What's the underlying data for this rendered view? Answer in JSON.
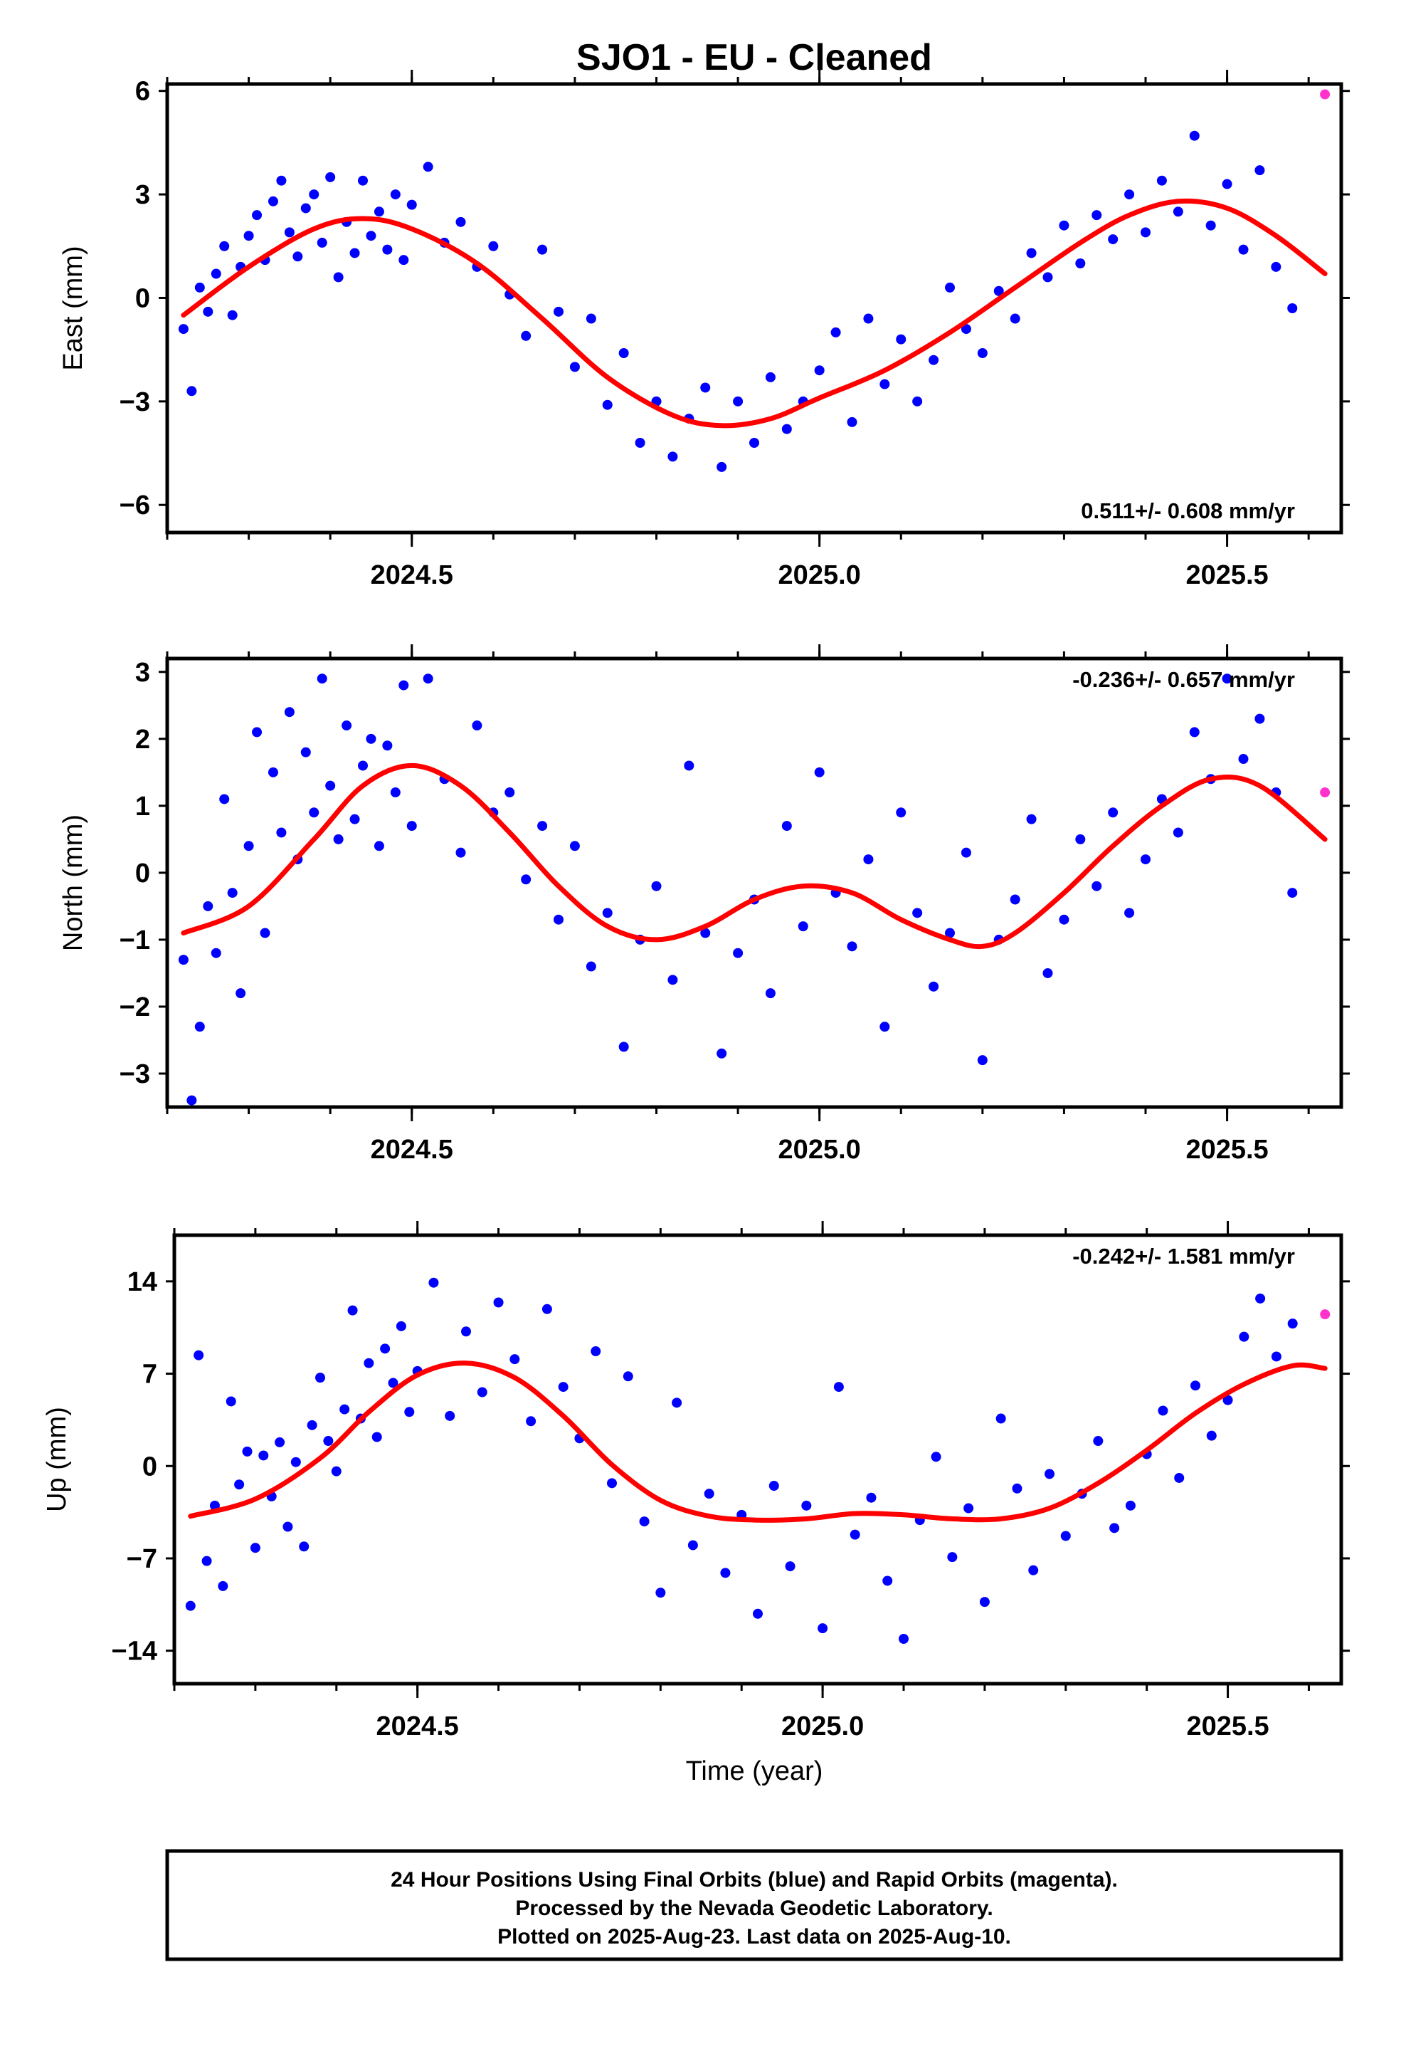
{
  "chart_data": {
    "type": "scatter",
    "title": "SJO1  - EU - Cleaned",
    "xlabel": "Time (year)",
    "xlim": [
      2024.2,
      2025.64
    ],
    "x_ticks": [
      "2024.5",
      "2025.0",
      "2025.5"
    ],
    "x_tick_values": [
      2024.5,
      2025.0,
      2025.5
    ],
    "final_color": "#0000ff",
    "rapid_color": "#ff33cc",
    "fit_color": "#ff0000",
    "panels": [
      {
        "ylabel": "East (mm)",
        "ylim": [
          -6.8,
          6.2
        ],
        "y_ticks": [
          "6",
          "3",
          "0",
          "−3",
          "−6"
        ],
        "y_tick_values": [
          6,
          3,
          0,
          -3,
          -6
        ],
        "rate_label": "0.511+/- 0.608 mm/yr",
        "rate_position": "bottom-right",
        "series": [
          {
            "name": "Final Orbits",
            "x": [
              2024.22,
              2024.23,
              2024.24,
              2024.25,
              2024.26,
              2024.27,
              2024.28,
              2024.29,
              2024.3,
              2024.31,
              2024.32,
              2024.33,
              2024.34,
              2024.35,
              2024.36,
              2024.37,
              2024.38,
              2024.39,
              2024.4,
              2024.41,
              2024.42,
              2024.43,
              2024.44,
              2024.45,
              2024.46,
              2024.47,
              2024.48,
              2024.49,
              2024.5,
              2024.52,
              2024.54,
              2024.56,
              2024.58,
              2024.6,
              2024.62,
              2024.64,
              2024.66,
              2024.68,
              2024.7,
              2024.72,
              2024.74,
              2024.76,
              2024.78,
              2024.8,
              2024.82,
              2024.84,
              2024.86,
              2024.88,
              2024.9,
              2024.92,
              2024.94,
              2024.96,
              2024.98,
              2025.0,
              2025.02,
              2025.04,
              2025.06,
              2025.08,
              2025.1,
              2025.12,
              2025.14,
              2025.16,
              2025.18,
              2025.2,
              2025.22,
              2025.24,
              2025.26,
              2025.28,
              2025.3,
              2025.32,
              2025.34,
              2025.36,
              2025.38,
              2025.4,
              2025.42,
              2025.44,
              2025.46,
              2025.48,
              2025.5,
              2025.52,
              2025.54,
              2025.56,
              2025.58
            ],
            "y": [
              -0.9,
              -2.7,
              0.3,
              -0.4,
              0.7,
              1.5,
              -0.5,
              0.9,
              1.8,
              2.4,
              1.1,
              2.8,
              3.4,
              1.9,
              1.2,
              2.6,
              3.0,
              1.6,
              3.5,
              0.6,
              2.2,
              1.3,
              3.4,
              1.8,
              2.5,
              1.4,
              3.0,
              1.1,
              2.7,
              3.8,
              1.6,
              2.2,
              0.9,
              1.5,
              0.1,
              -1.1,
              1.4,
              -0.4,
              -2.0,
              -0.6,
              -3.1,
              -1.6,
              -4.2,
              -3.0,
              -4.6,
              -3.5,
              -2.6,
              -4.9,
              -3.0,
              -4.2,
              -2.3,
              -3.8,
              -3.0,
              -2.1,
              -1.0,
              -3.6,
              -0.6,
              -2.5,
              -1.2,
              -3.0,
              -1.8,
              0.3,
              -0.9,
              -1.6,
              0.2,
              -0.6,
              1.3,
              0.6,
              2.1,
              1.0,
              2.4,
              1.7,
              3.0,
              1.9,
              3.4,
              2.5,
              4.7,
              2.1,
              3.3,
              1.4,
              3.7,
              0.9,
              -0.3
            ]
          },
          {
            "name": "Rapid Orbits",
            "x": [
              2025.62
            ],
            "y": [
              5.9
            ]
          },
          {
            "name": "Fit",
            "x": [
              2024.22,
              2024.3,
              2024.38,
              2024.44,
              2024.5,
              2024.58,
              2024.66,
              2024.74,
              2024.82,
              2024.88,
              2024.94,
              2025.0,
              2025.08,
              2025.16,
              2025.24,
              2025.32,
              2025.38,
              2025.44,
              2025.5,
              2025.56,
              2025.62
            ],
            "y": [
              -0.5,
              0.9,
              2.0,
              2.3,
              2.0,
              1.0,
              -0.6,
              -2.3,
              -3.4,
              -3.7,
              -3.5,
              -2.9,
              -2.1,
              -1.0,
              0.3,
              1.6,
              2.4,
              2.8,
              2.6,
              1.8,
              0.7
            ]
          }
        ]
      },
      {
        "ylabel": "North (mm)",
        "ylim": [
          -3.5,
          3.2
        ],
        "y_ticks": [
          "3",
          "2",
          "1",
          "0",
          "−1",
          "−2",
          "−3"
        ],
        "y_tick_values": [
          3,
          2,
          1,
          0,
          -1,
          -2,
          -3
        ],
        "rate_label": "-0.236+/- 0.657 mm/yr",
        "rate_position": "top-right",
        "series": [
          {
            "name": "Final Orbits",
            "x": [
              2024.22,
              2024.23,
              2024.24,
              2024.25,
              2024.26,
              2024.27,
              2024.28,
              2024.29,
              2024.3,
              2024.31,
              2024.32,
              2024.33,
              2024.34,
              2024.35,
              2024.36,
              2024.37,
              2024.38,
              2024.39,
              2024.4,
              2024.41,
              2024.42,
              2024.43,
              2024.44,
              2024.45,
              2024.46,
              2024.47,
              2024.48,
              2024.49,
              2024.5,
              2024.52,
              2024.54,
              2024.56,
              2024.58,
              2024.6,
              2024.62,
              2024.64,
              2024.66,
              2024.68,
              2024.7,
              2024.72,
              2024.74,
              2024.76,
              2024.78,
              2024.8,
              2024.82,
              2024.84,
              2024.86,
              2024.88,
              2024.9,
              2024.92,
              2024.94,
              2024.96,
              2024.98,
              2025.0,
              2025.02,
              2025.04,
              2025.06,
              2025.08,
              2025.1,
              2025.12,
              2025.14,
              2025.16,
              2025.18,
              2025.2,
              2025.22,
              2025.24,
              2025.26,
              2025.28,
              2025.3,
              2025.32,
              2025.34,
              2025.36,
              2025.38,
              2025.4,
              2025.42,
              2025.44,
              2025.46,
              2025.48,
              2025.5,
              2025.52,
              2025.54,
              2025.56,
              2025.58
            ],
            "y": [
              -1.3,
              -3.4,
              -2.3,
              -0.5,
              -1.2,
              1.1,
              -0.3,
              -1.8,
              0.4,
              2.1,
              -0.9,
              1.5,
              0.6,
              2.4,
              0.2,
              1.8,
              0.9,
              2.9,
              1.3,
              0.5,
              2.2,
              0.8,
              1.6,
              2.0,
              0.4,
              1.9,
              1.2,
              2.8,
              0.7,
              2.9,
              1.4,
              0.3,
              2.2,
              0.9,
              1.2,
              -0.1,
              0.7,
              -0.7,
              0.4,
              -1.4,
              -0.6,
              -2.6,
              -1.0,
              -0.2,
              -1.6,
              1.6,
              -0.9,
              -2.7,
              -1.2,
              -0.4,
              -1.8,
              0.7,
              -0.8,
              1.5,
              -0.3,
              -1.1,
              0.2,
              -2.3,
              0.9,
              -0.6,
              -1.7,
              -0.9,
              0.3,
              -2.8,
              -1.0,
              -0.4,
              0.8,
              -1.5,
              -0.7,
              0.5,
              -0.2,
              0.9,
              -0.6,
              0.2,
              1.1,
              0.6,
              2.1,
              1.4,
              2.9,
              1.7,
              2.3,
              1.2,
              -0.3
            ]
          },
          {
            "name": "Rapid Orbits",
            "x": [
              2025.62
            ],
            "y": [
              1.2
            ]
          },
          {
            "name": "Fit",
            "x": [
              2024.22,
              2024.3,
              2024.38,
              2024.44,
              2024.5,
              2024.56,
              2024.62,
              2024.68,
              2024.74,
              2024.8,
              2024.86,
              2024.92,
              2024.98,
              2025.04,
              2025.1,
              2025.16,
              2025.2,
              2025.24,
              2025.3,
              2025.36,
              2025.42,
              2025.48,
              2025.54,
              2025.62
            ],
            "y": [
              -0.9,
              -0.5,
              0.5,
              1.3,
              1.6,
              1.3,
              0.6,
              -0.2,
              -0.8,
              -1.0,
              -0.8,
              -0.4,
              -0.2,
              -0.3,
              -0.7,
              -1.0,
              -1.1,
              -0.9,
              -0.3,
              0.4,
              1.0,
              1.4,
              1.3,
              0.5
            ]
          }
        ]
      },
      {
        "ylabel": "Up (mm)",
        "ylim": [
          -16.5,
          17.5
        ],
        "y_ticks": [
          "14",
          "7",
          "0",
          "−7",
          "−14"
        ],
        "y_tick_values": [
          14,
          7,
          0,
          -7,
          -14
        ],
        "rate_label": "-0.242+/- 1.581 mm/yr",
        "rate_position": "top-right",
        "series": [
          {
            "name": "Final Orbits",
            "x": [
              2024.22,
              2024.23,
              2024.24,
              2024.25,
              2024.26,
              2024.27,
              2024.28,
              2024.29,
              2024.3,
              2024.31,
              2024.32,
              2024.33,
              2024.34,
              2024.35,
              2024.36,
              2024.37,
              2024.38,
              2024.39,
              2024.4,
              2024.41,
              2024.42,
              2024.43,
              2024.44,
              2024.45,
              2024.46,
              2024.47,
              2024.48,
              2024.49,
              2024.5,
              2024.52,
              2024.54,
              2024.56,
              2024.58,
              2024.6,
              2024.62,
              2024.64,
              2024.66,
              2024.68,
              2024.7,
              2024.72,
              2024.74,
              2024.76,
              2024.78,
              2024.8,
              2024.82,
              2024.84,
              2024.86,
              2024.88,
              2024.9,
              2024.92,
              2024.94,
              2024.96,
              2024.98,
              2025.0,
              2025.02,
              2025.04,
              2025.06,
              2025.08,
              2025.1,
              2025.12,
              2025.14,
              2025.16,
              2025.18,
              2025.2,
              2025.22,
              2025.24,
              2025.26,
              2025.28,
              2025.3,
              2025.32,
              2025.34,
              2025.36,
              2025.38,
              2025.4,
              2025.42,
              2025.44,
              2025.46,
              2025.48,
              2025.5,
              2025.52,
              2025.54,
              2025.56,
              2025.58
            ],
            "y": [
              -10.6,
              8.4,
              -7.2,
              -3.0,
              -9.1,
              4.9,
              -1.4,
              1.1,
              -6.2,
              0.8,
              -2.3,
              1.8,
              -4.6,
              0.3,
              -6.1,
              3.1,
              6.7,
              1.9,
              -0.4,
              4.3,
              11.8,
              3.6,
              7.8,
              2.2,
              8.9,
              6.3,
              10.6,
              4.1,
              7.2,
              13.9,
              3.8,
              10.2,
              5.6,
              12.4,
              8.1,
              3.4,
              11.9,
              6.0,
              2.1,
              8.7,
              -1.3,
              6.8,
              -4.2,
              -9.6,
              4.8,
              -6.0,
              -2.1,
              -8.1,
              -3.7,
              -11.2,
              -1.5,
              -7.6,
              -3.0,
              -12.3,
              6.0,
              -5.2,
              -2.4,
              -8.7,
              -13.1,
              -4.1,
              0.7,
              -6.9,
              -3.2,
              -10.3,
              3.6,
              -1.7,
              -7.9,
              -0.6,
              -5.3,
              -2.1,
              1.9,
              -4.7,
              -3.0,
              0.9,
              4.2,
              -0.9,
              6.1,
              2.3,
              5.0,
              9.8,
              12.7,
              8.3,
              10.8
            ]
          },
          {
            "name": "Rapid Orbits",
            "x": [
              2025.62
            ],
            "y": [
              11.5
            ]
          },
          {
            "name": "Fit",
            "x": [
              2024.22,
              2024.3,
              2024.38,
              2024.44,
              2024.5,
              2024.56,
              2024.62,
              2024.68,
              2024.74,
              2024.8,
              2024.86,
              2024.92,
              2024.98,
              2025.04,
              2025.1,
              2025.16,
              2025.22,
              2025.28,
              2025.34,
              2025.4,
              2025.46,
              2025.52,
              2025.58,
              2025.62
            ],
            "y": [
              -3.8,
              -2.5,
              0.6,
              4.1,
              6.9,
              7.8,
              6.7,
              3.8,
              0.1,
              -2.6,
              -3.8,
              -4.1,
              -4.0,
              -3.6,
              -3.7,
              -4.0,
              -4.0,
              -3.2,
              -1.3,
              1.2,
              4.0,
              6.2,
              7.6,
              7.4
            ]
          }
        ]
      }
    ],
    "caption_lines": [
      "24 Hour Positions Using Final Orbits (blue) and Rapid Orbits (magenta).",
      "Processed by the Nevada Geodetic Laboratory.",
      "Plotted on 2025-Aug-23. Last data on 2025-Aug-10."
    ]
  }
}
